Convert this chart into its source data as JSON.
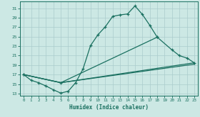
{
  "xlabel": "Humidex (Indice chaleur)",
  "background_color": "#cce8e4",
  "grid_color": "#aacccc",
  "line_color": "#1a7060",
  "xlim": [
    -0.5,
    23.5
  ],
  "ylim": [
    12.5,
    32.5
  ],
  "xticks": [
    0,
    1,
    2,
    3,
    4,
    5,
    6,
    7,
    8,
    9,
    10,
    11,
    12,
    13,
    14,
    15,
    16,
    17,
    18,
    19,
    20,
    21,
    22,
    23
  ],
  "yticks": [
    13,
    15,
    17,
    19,
    21,
    23,
    25,
    27,
    29,
    31
  ],
  "s1x": [
    0,
    1,
    2,
    3,
    4,
    5,
    6,
    7,
    8,
    9,
    10,
    11,
    12,
    13,
    14,
    15,
    16,
    17,
    18
  ],
  "s1y": [
    17.0,
    15.8,
    15.3,
    14.6,
    13.8,
    13.1,
    13.5,
    15.3,
    18.2,
    23.1,
    25.4,
    27.1,
    29.3,
    29.6,
    29.8,
    31.5,
    29.7,
    27.4,
    24.9
  ],
  "s2x": [
    0,
    5,
    18,
    20,
    21,
    22,
    23
  ],
  "s2y": [
    17.0,
    15.3,
    24.9,
    22.2,
    21.0,
    20.5,
    19.5
  ],
  "s3x": [
    0,
    5,
    23
  ],
  "s3y": [
    17.0,
    15.3,
    19.5
  ],
  "s4x": [
    0,
    5,
    23
  ],
  "s4y": [
    17.0,
    15.3,
    19.2
  ]
}
